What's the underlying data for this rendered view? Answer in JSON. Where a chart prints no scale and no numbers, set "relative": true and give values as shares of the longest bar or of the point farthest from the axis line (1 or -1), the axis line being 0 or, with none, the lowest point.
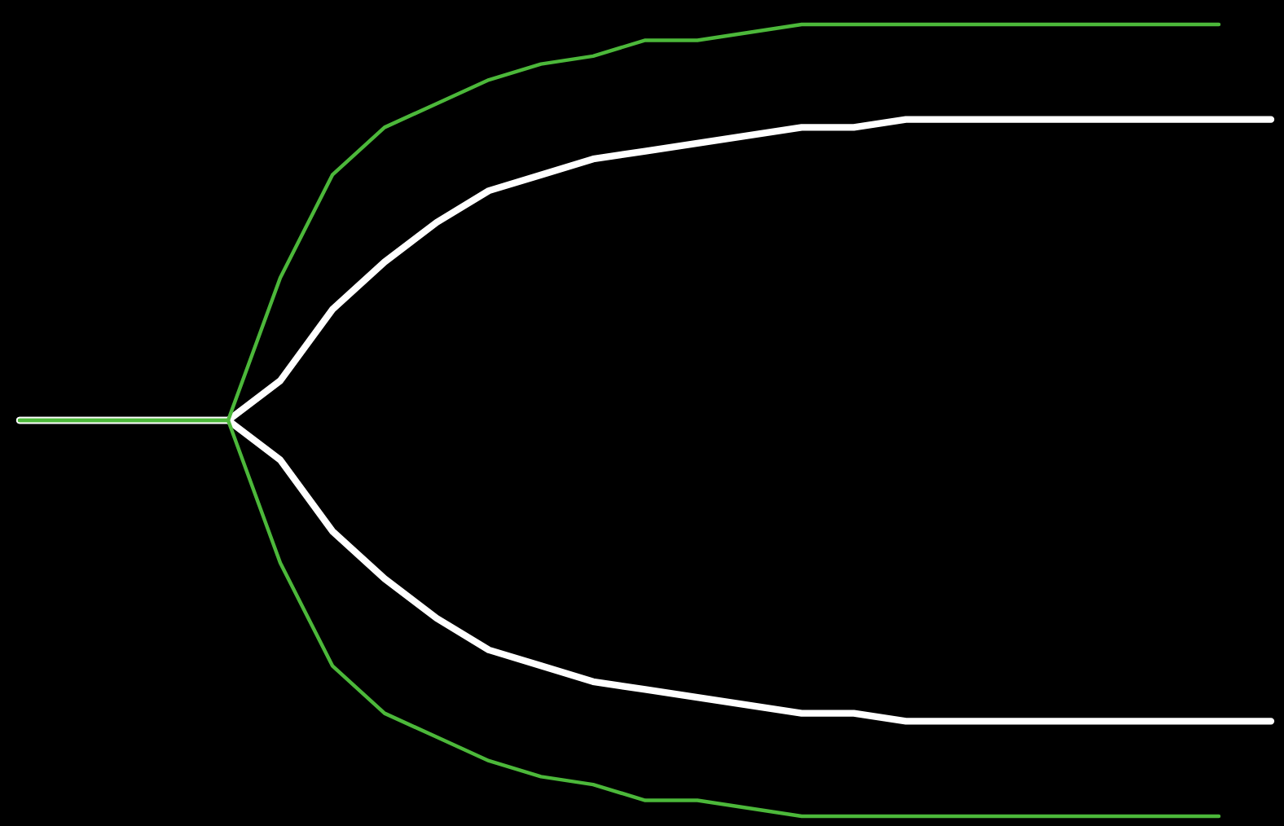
{
  "chart_data": {
    "type": "line",
    "relative": true,
    "categories": [
      null,
      null,
      null,
      null,
      null,
      null,
      null,
      null,
      null,
      null,
      null,
      null,
      null,
      null,
      null,
      null,
      null,
      null,
      null,
      null,
      null,
      null,
      null,
      null,
      null
    ],
    "series": [
      {
        "color": "#ffffff",
        "values": [
          0.5,
          0.5,
          0.5,
          0.5,
          0.5,
          0.55,
          0.64,
          0.7,
          0.75,
          0.79,
          0.81,
          0.83,
          0.84,
          0.85,
          0.86,
          0.87,
          0.87,
          0.88,
          0.88,
          0.88,
          0.88,
          0.88,
          0.88,
          0.88,
          0.88
        ]
      },
      {
        "color": "#ffffff",
        "values": [
          0.5,
          0.5,
          0.5,
          0.5,
          0.5,
          0.45,
          0.36,
          0.3,
          0.25,
          0.21,
          0.19,
          0.17,
          0.16,
          0.15,
          0.14,
          0.13,
          0.13,
          0.12,
          0.12,
          0.12,
          0.12,
          0.12,
          0.12,
          0.12,
          0.12
        ]
      },
      {
        "color": "#4cb83a",
        "values": [
          0.5,
          0.5,
          0.5,
          0.5,
          0.5,
          0.68,
          0.81,
          0.87,
          0.9,
          0.93,
          0.95,
          0.96,
          0.98,
          0.98,
          0.99,
          1.0,
          1.0,
          1.0,
          1.0,
          1.0,
          1.0,
          1.0,
          1.0,
          1.0,
          null
        ]
      },
      {
        "color": "#4cb83a",
        "values": [
          0.5,
          0.5,
          0.5,
          0.5,
          0.5,
          0.32,
          0.19,
          0.13,
          0.1,
          0.07,
          0.05,
          0.04,
          0.02,
          0.02,
          0.01,
          0.0,
          0.0,
          0.0,
          0.0,
          0.0,
          0.0,
          0.0,
          0.0,
          0.0,
          null
        ]
      }
    ],
    "legend": false,
    "marker": "none",
    "line_style": "solid"
  }
}
